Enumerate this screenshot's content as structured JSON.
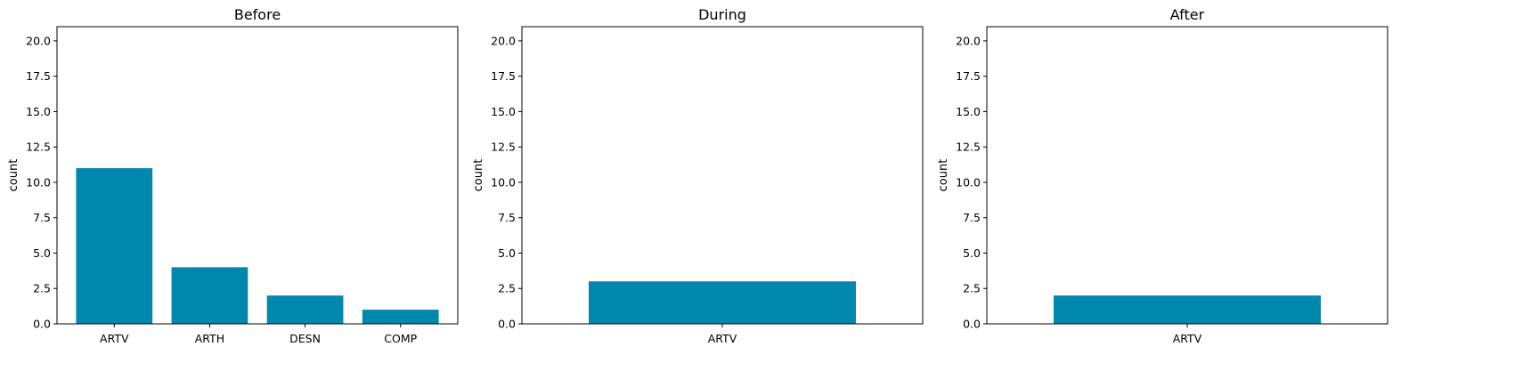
{
  "chart_data": [
    {
      "type": "bar",
      "title": "Before",
      "ylabel": "count",
      "xlabel": "",
      "categories": [
        "ARTV",
        "ARTH",
        "DESN",
        "COMP"
      ],
      "values": [
        11,
        4,
        2,
        1
      ],
      "ylim": [
        0,
        21
      ],
      "yticks": [
        "0.0",
        "2.5",
        "5.0",
        "7.5",
        "10.0",
        "12.5",
        "15.0",
        "17.5",
        "20.0"
      ],
      "color": "#0087ae",
      "grid": false
    },
    {
      "type": "bar",
      "title": "During",
      "ylabel": "count",
      "xlabel": "",
      "categories": [
        "ARTV"
      ],
      "values": [
        3
      ],
      "ylim": [
        0,
        21
      ],
      "yticks": [
        "0.0",
        "2.5",
        "5.0",
        "7.5",
        "10.0",
        "12.5",
        "15.0",
        "17.5",
        "20.0"
      ],
      "color": "#0087ae",
      "grid": false
    },
    {
      "type": "bar",
      "title": "After",
      "ylabel": "count",
      "xlabel": "",
      "categories": [
        "ARTV"
      ],
      "values": [
        2
      ],
      "ylim": [
        0,
        21
      ],
      "yticks": [
        "0.0",
        "2.5",
        "5.0",
        "7.5",
        "10.0",
        "12.5",
        "15.0",
        "17.5",
        "20.0"
      ],
      "color": "#0087ae",
      "grid": false
    }
  ]
}
